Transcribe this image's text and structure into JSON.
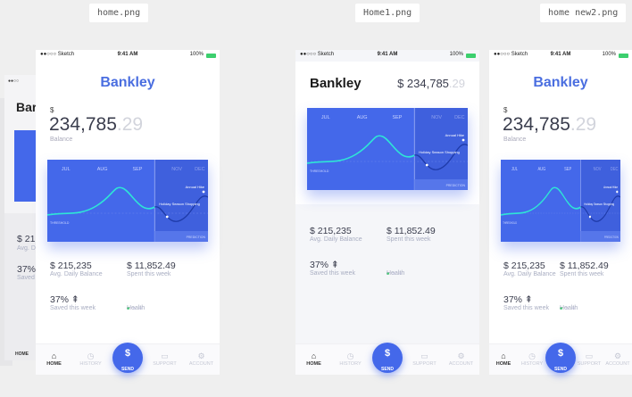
{
  "file_labels": [
    "home.png",
    "Home1.png",
    "home new2.png"
  ],
  "colors": {
    "accent": "#4468ea",
    "line": "#2ee6d6",
    "health_on": "#3ccf6e",
    "background": "#efefef"
  },
  "status_bar": {
    "carrier": "●●○○○ Sketch",
    "wifi_icon": "wifi-icon",
    "time": "9:41 AM",
    "battery": "100%"
  },
  "app": {
    "title": "Bankley",
    "currency": "$",
    "balance_main": "234,785",
    "balance_cents": ".29",
    "balance_label": "Balance",
    "header_balance_prefix": "$ "
  },
  "chart": {
    "months": [
      "JUL",
      "AUG",
      "SEP",
      "NOV",
      "DEC"
    ],
    "threshold_label": "THRESHOLD",
    "prediction_label": "PREDICTION",
    "annotations": [
      "Annual Hike",
      "Holiday Season Shopping"
    ]
  },
  "stats": [
    {
      "value": "$ 215,235",
      "label": "Avg. Daily Balance"
    },
    {
      "value": "$ 11,852.49",
      "label": "Spent this week"
    },
    {
      "value": "37% ⇞",
      "label": "Saved this week"
    },
    {
      "value": "",
      "label": "Health",
      "health_level": 1,
      "health_max": 3
    }
  ],
  "tabs": [
    {
      "label": "HOME",
      "icon": "home-icon",
      "glyph": "⌂",
      "active": true
    },
    {
      "label": "HISTORY",
      "icon": "history-icon",
      "glyph": "◷"
    },
    {
      "label": "SEND",
      "icon": "dollar-icon",
      "glyph": "$"
    },
    {
      "label": "SUPPORT",
      "icon": "chat-icon",
      "glyph": "▭"
    },
    {
      "label": "ACCOUNT",
      "icon": "gear-icon",
      "glyph": "⚙"
    }
  ],
  "ghost": {
    "title_partial": "Bar",
    "stat_partial": "$ 21",
    "stat_label_partial": "Avg. D",
    "saved_partial": "37%",
    "saved_label_partial": "Saved",
    "tab_partial": "HOME"
  }
}
